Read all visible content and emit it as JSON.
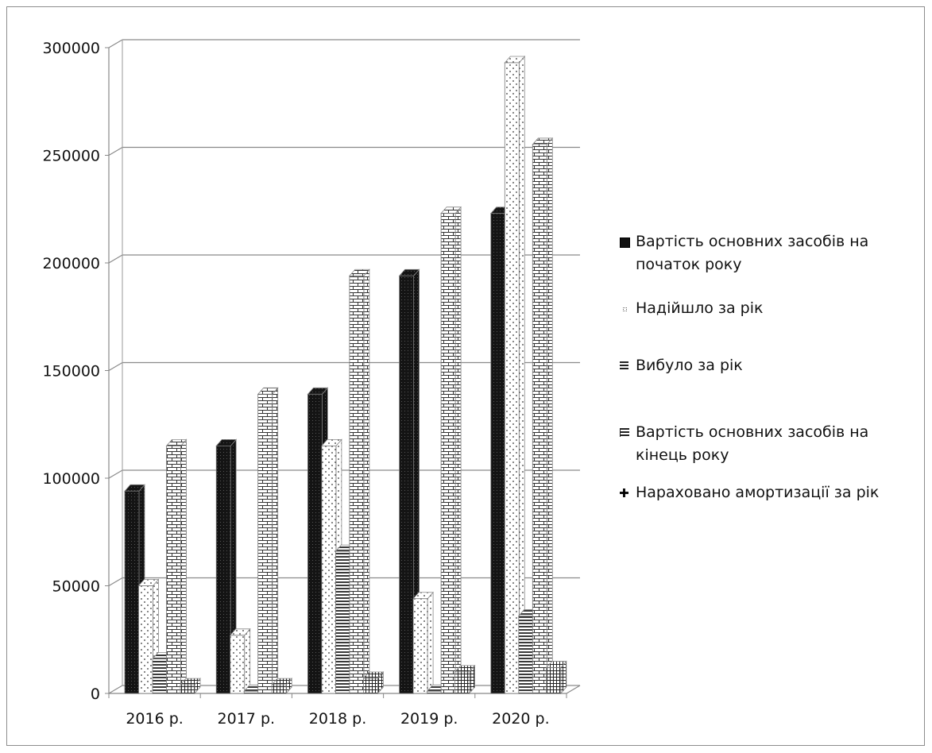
{
  "chart_data": {
    "type": "bar",
    "title": "",
    "xlabel": "",
    "ylabel": "",
    "categories": [
      "2016 р.",
      "2017 р.",
      "2018 р.",
      "2019 р.",
      "2020 р."
    ],
    "ylim": [
      0,
      300000
    ],
    "yticks": [
      "0",
      "50000",
      "100000",
      "150000",
      "200000",
      "250000",
      "300000"
    ],
    "grid": true,
    "legend_position": "right",
    "series": [
      {
        "name": "Вартість основних засобів на початок року",
        "values": [
          94000,
          115000,
          139000,
          194000,
          223000
        ],
        "pattern": "solid-dark"
      },
      {
        "name": "Надійшло за рік",
        "values": [
          50000,
          27000,
          115000,
          44000,
          293000
        ],
        "pattern": "dots"
      },
      {
        "name": "Вибуло за рік",
        "values": [
          16000,
          1000,
          66000,
          1000,
          36000
        ],
        "pattern": "horizontal-lines"
      },
      {
        "name": "Вартість основних засобів на кінець року",
        "values": [
          115000,
          139000,
          194000,
          223000,
          255000
        ],
        "pattern": "bricks"
      },
      {
        "name": "Нараховано амортизації за рік",
        "values": [
          4000,
          4000,
          7000,
          10000,
          12000
        ],
        "pattern": "grid"
      }
    ]
  }
}
